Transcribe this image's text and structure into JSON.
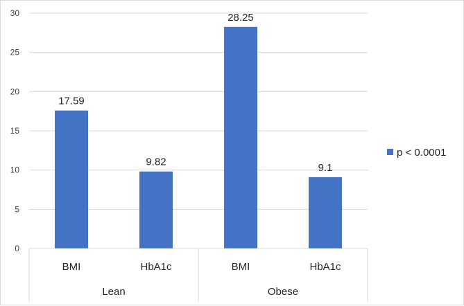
{
  "chart_data": {
    "type": "bar",
    "categories": [
      "BMI",
      "HbA1c",
      "BMI",
      "HbA1c"
    ],
    "groups": [
      {
        "label": "Lean",
        "categories": [
          "BMI",
          "HbA1c"
        ]
      },
      {
        "label": "Obese",
        "categories": [
          "BMI",
          "HbA1c"
        ]
      }
    ],
    "series": [
      {
        "name": "p < 0.0001",
        "values": [
          17.59,
          9.82,
          28.25,
          9.1
        ],
        "color": "#4472c4"
      }
    ],
    "data_labels": [
      "17.59",
      "9.82",
      "28.25",
      "9.1"
    ],
    "ylim": [
      0,
      30
    ],
    "yticks": [
      "0",
      "5",
      "10",
      "15",
      "20",
      "25",
      "30"
    ],
    "grid": true,
    "legend_position": "right"
  }
}
